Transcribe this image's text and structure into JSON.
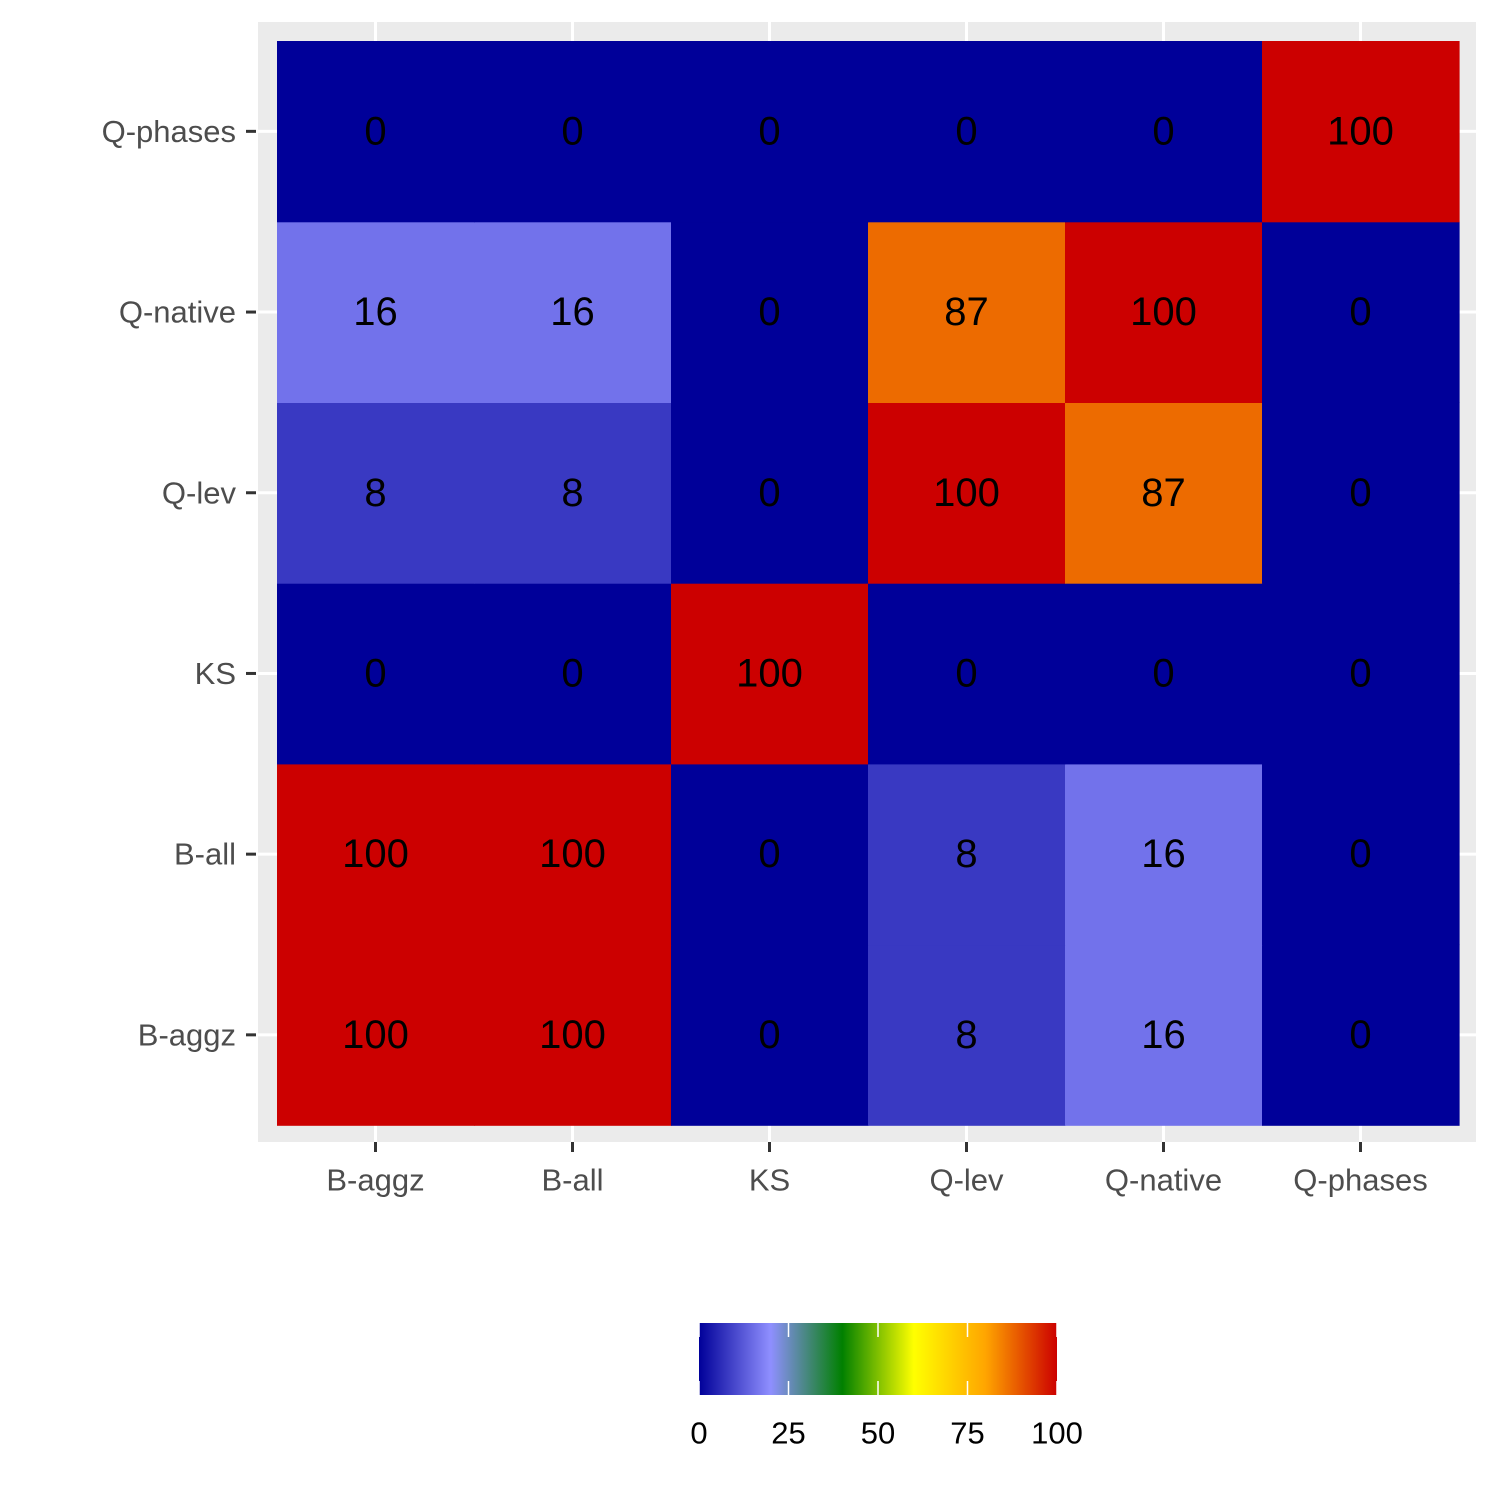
{
  "chart_data": {
    "type": "heatmap",
    "title": "",
    "xlabel": "",
    "ylabel": "",
    "x_categories": [
      "B-aggz",
      "B-all",
      "KS",
      "Q-lev",
      "Q-native",
      "Q-phases"
    ],
    "y_categories": [
      "B-aggz",
      "B-all",
      "KS",
      "Q-lev",
      "Q-native",
      "Q-phases"
    ],
    "values": [
      [
        100,
        100,
        0,
        8,
        16,
        0
      ],
      [
        100,
        100,
        0,
        8,
        16,
        0
      ],
      [
        0,
        0,
        100,
        0,
        0,
        0
      ],
      [
        8,
        8,
        0,
        100,
        87,
        0
      ],
      [
        16,
        16,
        0,
        87,
        100,
        0
      ],
      [
        0,
        0,
        0,
        0,
        0,
        100
      ]
    ],
    "colorbar": {
      "min": 0,
      "max": 100,
      "ticks": [
        0,
        25,
        50,
        75,
        100
      ],
      "tick_labels": [
        "0",
        "25",
        "50",
        "75",
        "100"
      ],
      "colors": [
        "#000099",
        "#8f8fff",
        "#008000",
        "#ffff00",
        "#ffa500",
        "#cc0000"
      ],
      "placement": "bottom"
    },
    "grid": true,
    "panel_background": "#ebebeb",
    "gridline_color": "#ffffff"
  }
}
